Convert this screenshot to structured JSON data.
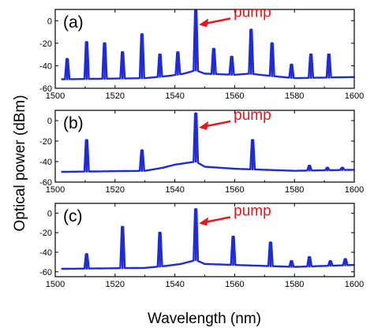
{
  "chart_data": [
    {
      "type": "line",
      "panel_label": "(a)",
      "annotation": "pump",
      "annotation_x": 1547,
      "xlim": [
        1500,
        1600
      ],
      "ylim": [
        -60,
        10
      ],
      "xticks": [
        1500,
        1520,
        1540,
        1560,
        1580,
        1600
      ],
      "yticks": [
        0,
        -20,
        -40,
        -60
      ],
      "baseline": [
        [
          1502,
          -52
        ],
        [
          1530,
          -51
        ],
        [
          1538,
          -49
        ],
        [
          1543,
          -47
        ],
        [
          1547,
          -44
        ],
        [
          1550,
          -47
        ],
        [
          1560,
          -48
        ],
        [
          1565,
          -47
        ],
        [
          1572,
          -49
        ],
        [
          1580,
          -51
        ],
        [
          1600,
          -50
        ]
      ],
      "peaks": [
        [
          1504,
          -34
        ],
        [
          1510.5,
          -19
        ],
        [
          1516.5,
          -20
        ],
        [
          1522.5,
          -28
        ],
        [
          1529,
          -12
        ],
        [
          1535,
          -30
        ],
        [
          1541,
          -28
        ],
        [
          1547,
          9
        ],
        [
          1553,
          -25
        ],
        [
          1559,
          -32
        ],
        [
          1565.5,
          -8
        ],
        [
          1572.5,
          -20
        ],
        [
          1579,
          -39
        ],
        [
          1585.5,
          -30
        ],
        [
          1591.5,
          -30
        ]
      ]
    },
    {
      "type": "line",
      "panel_label": "(b)",
      "annotation": "pump",
      "annotation_x": 1547,
      "xlim": [
        1500,
        1600
      ],
      "ylim": [
        -60,
        10
      ],
      "xticks": [
        1500,
        1520,
        1540,
        1560,
        1580,
        1600
      ],
      "yticks": [
        0,
        -20,
        -40,
        -60
      ],
      "baseline": [
        [
          1502,
          -50
        ],
        [
          1530,
          -49
        ],
        [
          1536,
          -46
        ],
        [
          1540,
          -43
        ],
        [
          1547,
          -40
        ],
        [
          1550,
          -45
        ],
        [
          1560,
          -47
        ],
        [
          1570,
          -48
        ],
        [
          1580,
          -49
        ],
        [
          1600,
          -48
        ]
      ],
      "peaks": [
        [
          1510.5,
          -19
        ],
        [
          1529,
          -29
        ],
        [
          1547,
          7
        ],
        [
          1566,
          -19
        ],
        [
          1585,
          -44
        ],
        [
          1591,
          -46
        ],
        [
          1596,
          -46
        ]
      ]
    },
    {
      "type": "line",
      "panel_label": "(c)",
      "annotation": "pump",
      "annotation_x": 1547,
      "xlim": [
        1500,
        1600
      ],
      "ylim": [
        -65,
        10
      ],
      "xticks": [
        1500,
        1520,
        1540,
        1560,
        1580,
        1600
      ],
      "yticks": [
        0,
        -20,
        -40,
        -60
      ],
      "baseline": [
        [
          1502,
          -57
        ],
        [
          1530,
          -56
        ],
        [
          1537,
          -54
        ],
        [
          1542,
          -52
        ],
        [
          1547,
          -48
        ],
        [
          1550,
          -52
        ],
        [
          1560,
          -53
        ],
        [
          1570,
          -54
        ],
        [
          1580,
          -55
        ],
        [
          1600,
          -53
        ]
      ],
      "peaks": [
        [
          1510.5,
          -42
        ],
        [
          1522.5,
          -14
        ],
        [
          1535,
          -20
        ],
        [
          1547,
          4
        ],
        [
          1559.5,
          -24
        ],
        [
          1572,
          -30
        ],
        [
          1579,
          -49
        ],
        [
          1585,
          -45
        ],
        [
          1592,
          -49
        ],
        [
          1597,
          -47
        ]
      ]
    }
  ],
  "figure": {
    "ylabel": "Optical power (dBm)",
    "xlabel": "Wavelength (nm)",
    "line_color": "#1f2bd6",
    "annotation_color": "#e8161a"
  }
}
